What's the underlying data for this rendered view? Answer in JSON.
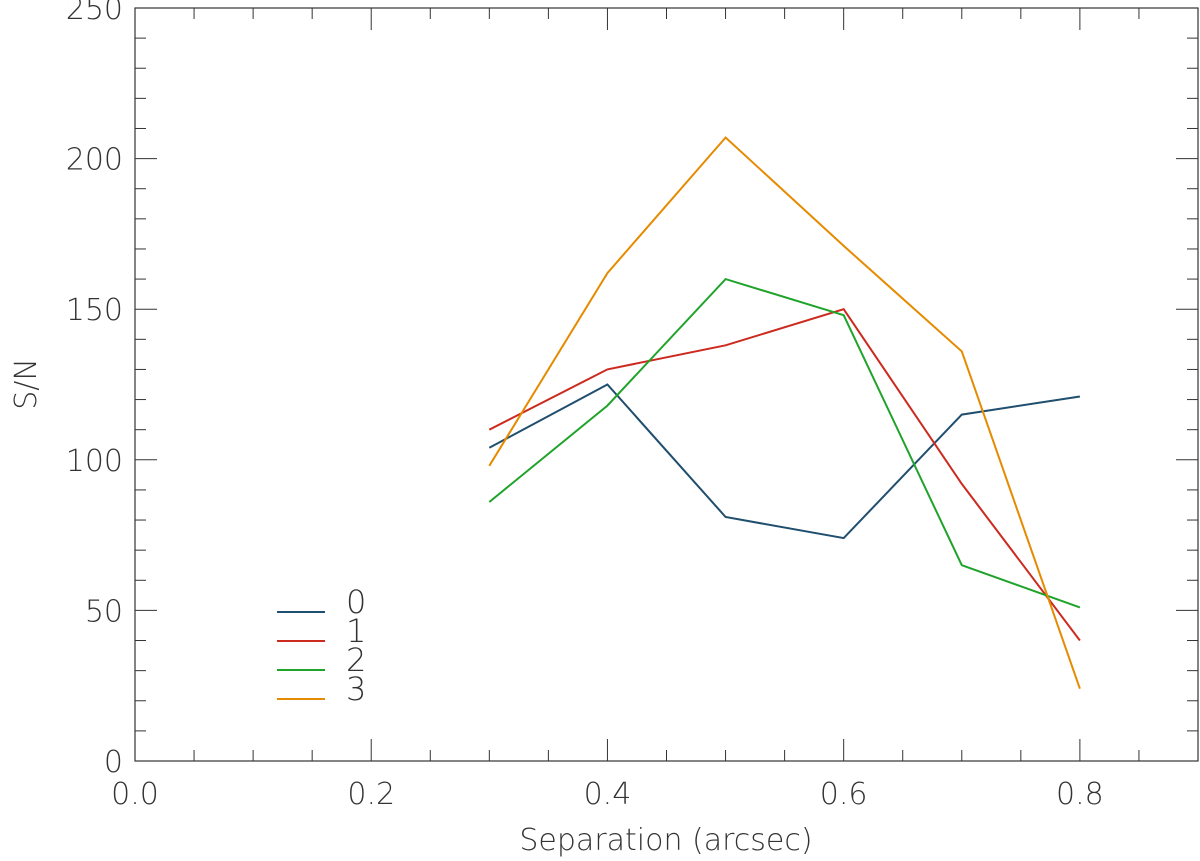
{
  "chart_data": {
    "type": "line",
    "title": "",
    "xlabel": "Separation (arcsec)",
    "ylabel": "S/N",
    "xlim": [
      0.0,
      0.9
    ],
    "ylim": [
      0,
      250
    ],
    "x_ticks": [
      "0.0",
      "0.2",
      "0.4",
      "0.6",
      "0.8"
    ],
    "x_tick_values": [
      0.0,
      0.2,
      0.4,
      0.6,
      0.8
    ],
    "y_ticks": [
      "0",
      "50",
      "100",
      "150",
      "200",
      "250"
    ],
    "y_tick_values": [
      0,
      50,
      100,
      150,
      200,
      250
    ],
    "grid": false,
    "legend_position": "bottom-left",
    "x": [
      0.3,
      0.4,
      0.5,
      0.6,
      0.7,
      0.8
    ],
    "series": [
      {
        "name": "0",
        "color": "#1f4e6e",
        "values": [
          104,
          125,
          81,
          74,
          115,
          121
        ]
      },
      {
        "name": "1",
        "color": "#cc2a1e",
        "values": [
          110,
          130,
          138,
          150,
          92,
          40
        ]
      },
      {
        "name": "2",
        "color": "#1fa32a",
        "values": [
          86,
          118,
          160,
          148,
          65,
          51
        ]
      },
      {
        "name": "3",
        "color": "#e68a00",
        "values": [
          98,
          162,
          207,
          171,
          136,
          24
        ]
      }
    ]
  }
}
